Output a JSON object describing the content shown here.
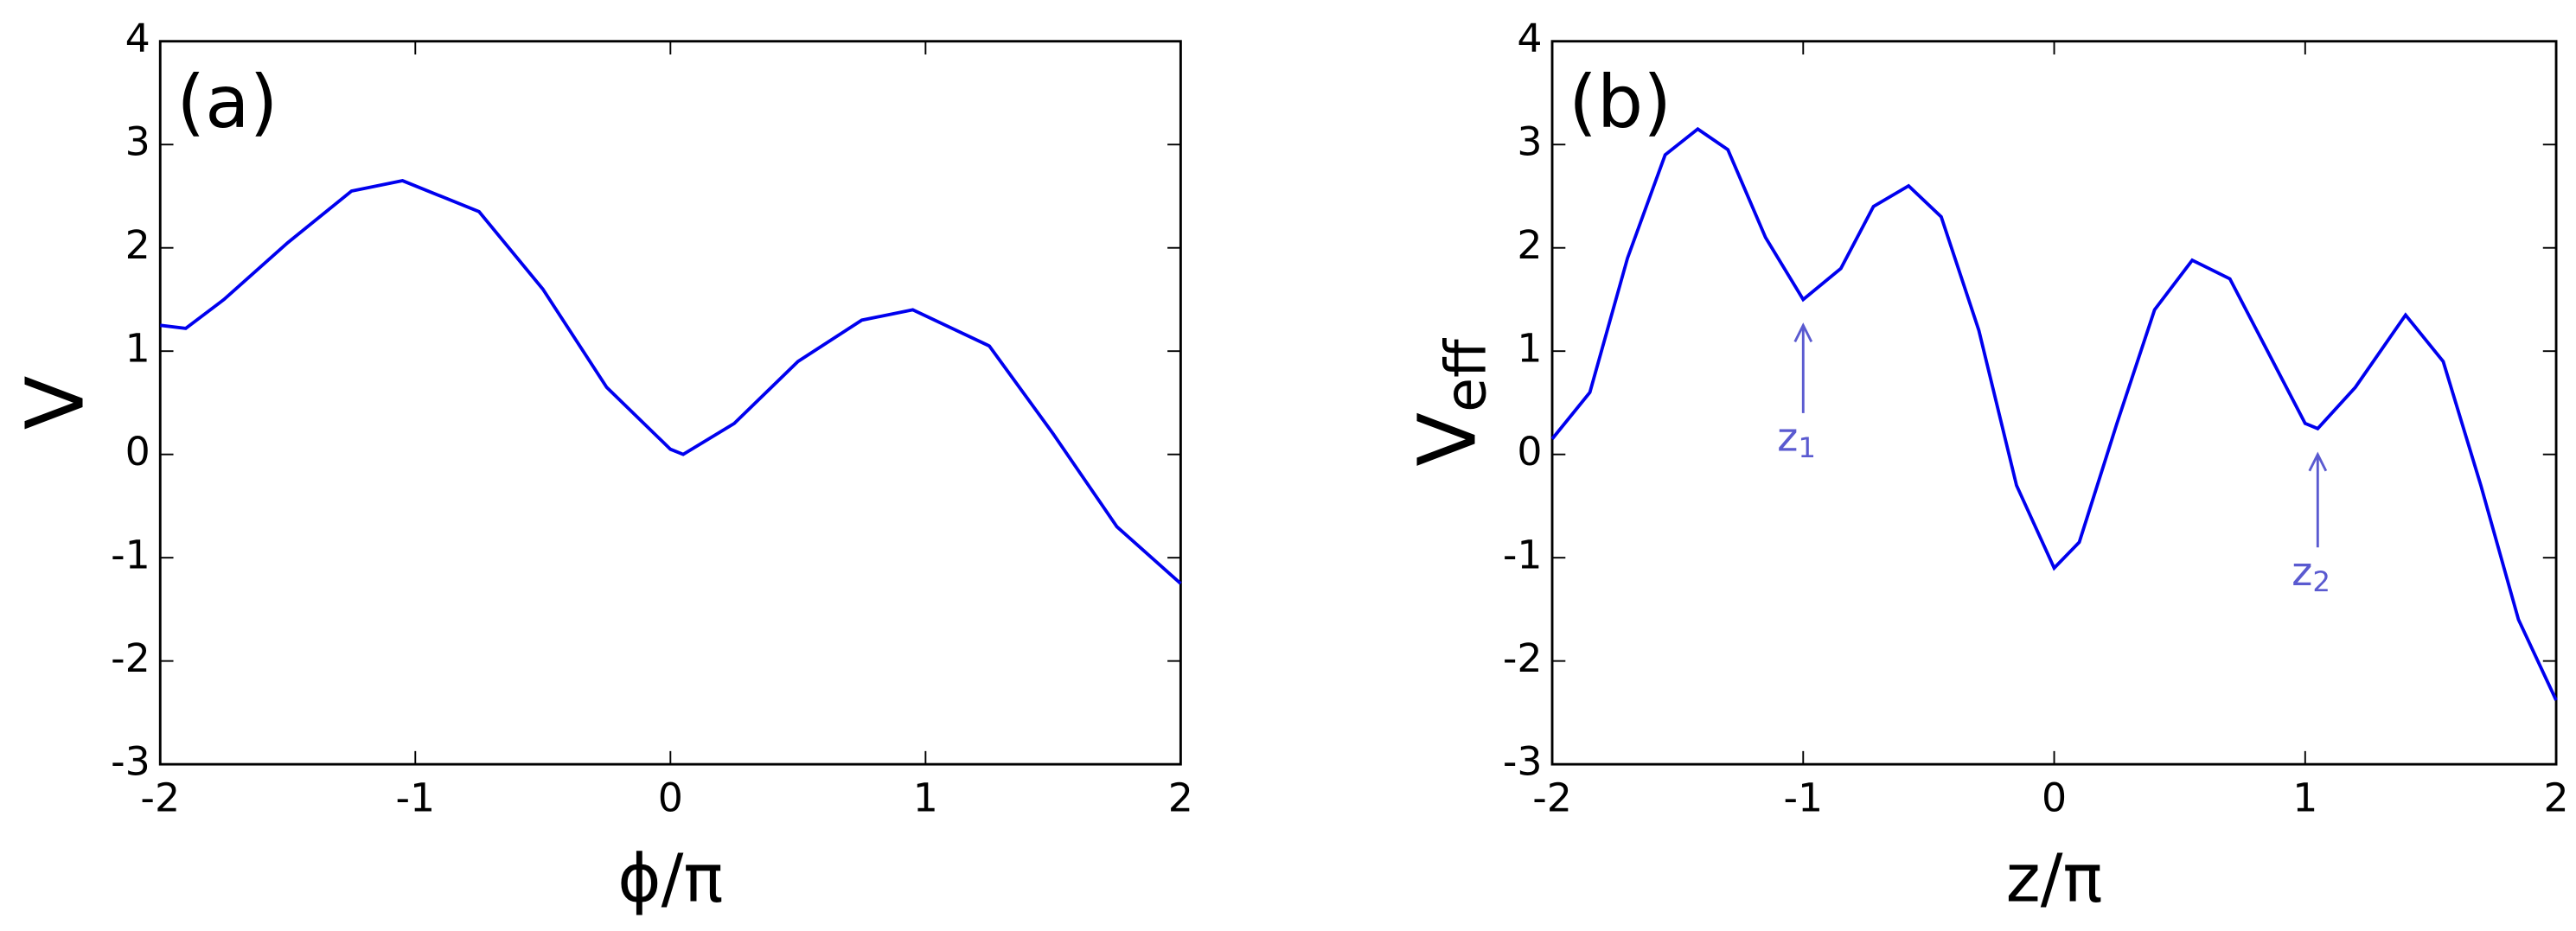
{
  "chart_data": [
    {
      "type": "line",
      "panel_label": "(a)",
      "xlabel": "ϕ/π",
      "ylabel": "V",
      "x": [
        -2,
        -1.9,
        -1.75,
        -1.5,
        -1.25,
        -1.05,
        -0.75,
        -0.5,
        -0.25,
        0,
        0.05,
        0.25,
        0.5,
        0.75,
        0.95,
        1.25,
        1.5,
        1.75,
        2
      ],
      "series": [
        {
          "color": "#0000ee",
          "values": [
            1.25,
            1.22,
            1.5,
            2.05,
            2.55,
            2.65,
            2.35,
            1.6,
            0.65,
            0.05,
            0.0,
            0.3,
            0.9,
            1.3,
            1.4,
            1.05,
            0.2,
            -0.7,
            -1.25
          ]
        }
      ],
      "xlim": [
        -2,
        2
      ],
      "xticks": [
        -2,
        -1,
        0,
        1,
        2
      ],
      "ylim": [
        -3,
        4
      ],
      "yticks": [
        -3,
        -2,
        -1,
        0,
        1,
        2,
        3,
        4
      ],
      "grid": false
    },
    {
      "type": "line",
      "panel_label": "(b)",
      "xlabel": "z/π",
      "ylabel": "V",
      "ylabel_sub": "eff",
      "x": [
        -2,
        -1.85,
        -1.7,
        -1.55,
        -1.42,
        -1.3,
        -1.15,
        -1.0,
        -0.85,
        -0.72,
        -0.58,
        -0.45,
        -0.3,
        -0.15,
        0,
        0.1,
        0.25,
        0.4,
        0.55,
        0.7,
        0.85,
        1.0,
        1.05,
        1.2,
        1.4,
        1.55,
        1.7,
        1.85,
        2
      ],
      "series": [
        {
          "color": "#0000ee",
          "values": [
            0.15,
            0.6,
            1.9,
            2.9,
            3.15,
            2.95,
            2.1,
            1.5,
            1.8,
            2.4,
            2.6,
            2.3,
            1.2,
            -0.3,
            -1.1,
            -0.85,
            0.3,
            1.4,
            1.88,
            1.7,
            1.0,
            0.3,
            0.25,
            0.65,
            1.35,
            0.9,
            -0.3,
            -1.6,
            -2.38
          ]
        }
      ],
      "annotations": [
        {
          "text": "z",
          "sub": "1",
          "x": -1.0,
          "y": 1.25,
          "y_end": 0.4,
          "color": "#5a5ad0"
        },
        {
          "text": "z",
          "sub": "2",
          "x": 1.05,
          "y": 0.0,
          "y_end": -0.9,
          "color": "#5a5ad0"
        }
      ],
      "xlim": [
        -2,
        2
      ],
      "xticks": [
        -2,
        -1,
        0,
        1,
        2
      ],
      "ylim": [
        -3,
        4
      ],
      "yticks": [
        -3,
        -2,
        -1,
        0,
        1,
        2,
        3,
        4
      ],
      "grid": false
    }
  ]
}
